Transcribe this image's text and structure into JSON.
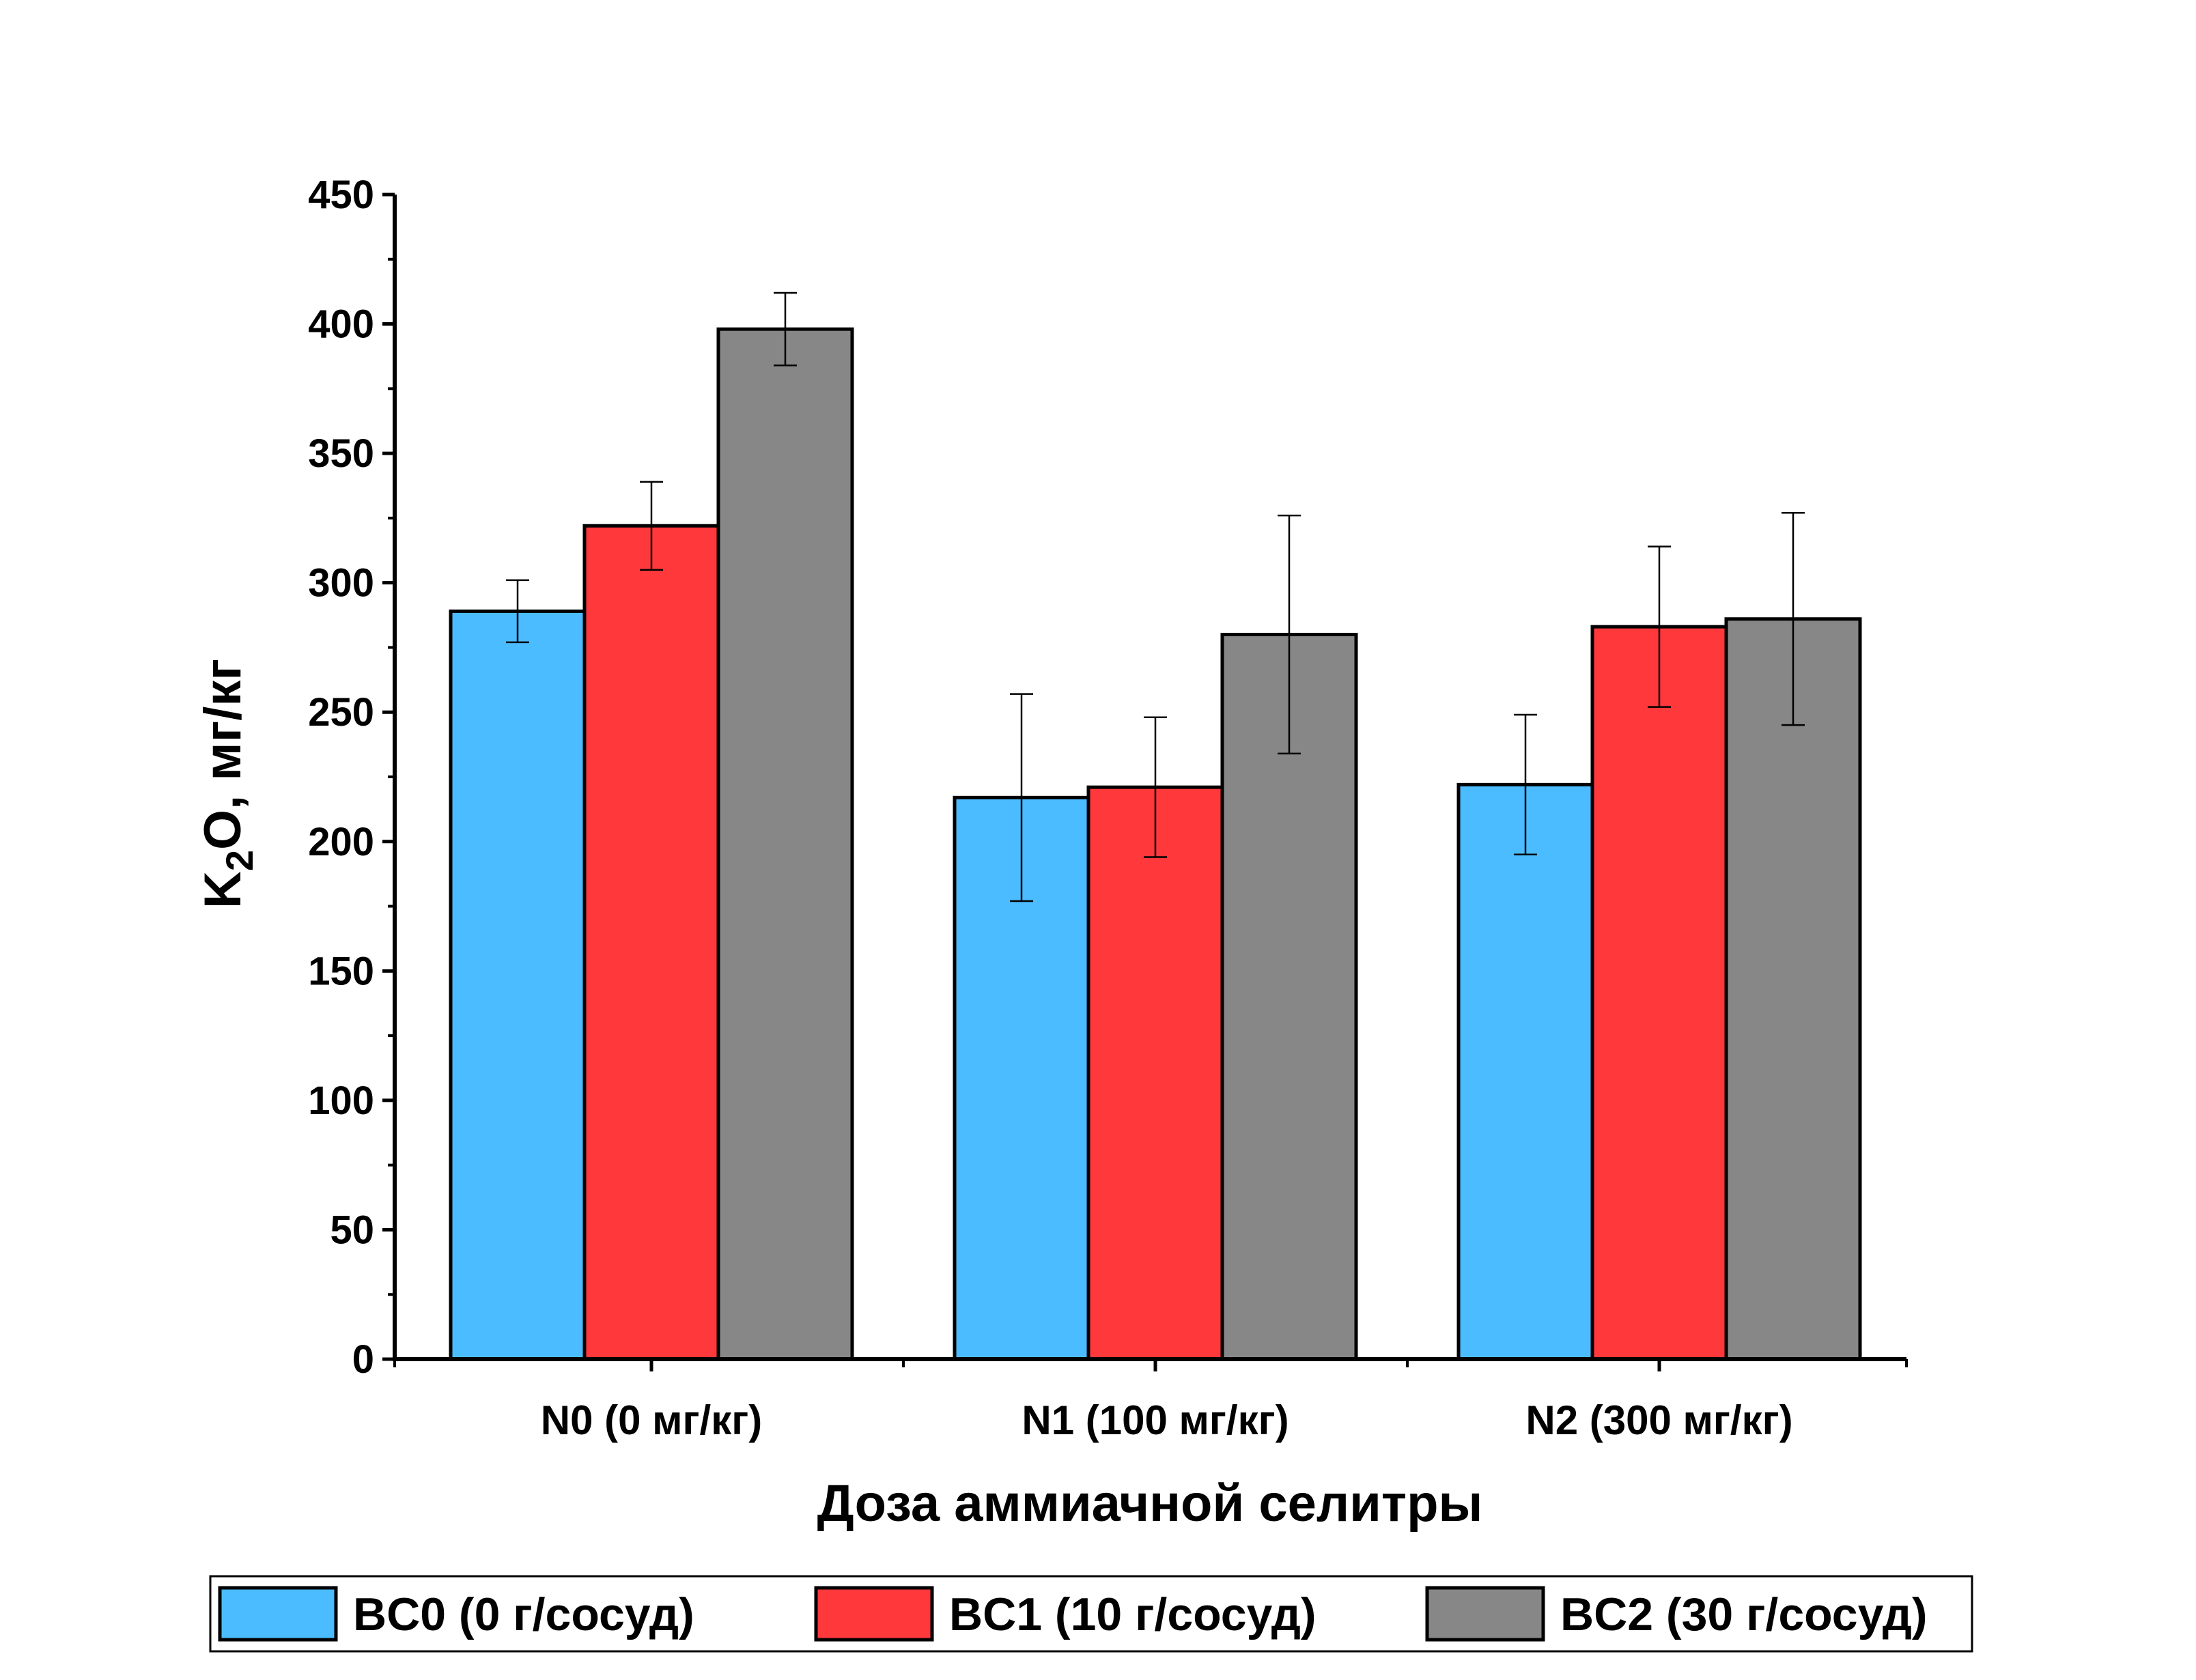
{
  "chart_data": {
    "type": "bar",
    "title": "",
    "xlabel": "Доза аммиачной селитры",
    "ylabel": {
      "main": "K",
      "sub": "2",
      "rest": "O, мг/кг"
    },
    "ylim": [
      0,
      450
    ],
    "yticks": [
      "0",
      "50",
      "100",
      "150",
      "200",
      "250",
      "300",
      "350",
      "400",
      "450"
    ],
    "ytick_values": [
      0,
      50,
      100,
      150,
      200,
      250,
      300,
      350,
      400,
      450
    ],
    "categories": [
      "N0 (0 мг/кг)",
      "N1 (100 мг/кг)",
      "N2 (300 мг/кг)"
    ],
    "series": [
      {
        "name": "BC0 (0 г/сосуд)",
        "color": "#4BBCFF",
        "values": [
          289,
          217,
          222
        ],
        "errors": [
          12,
          40,
          27
        ]
      },
      {
        "name": "BC1 (10 г/сосуд)",
        "color": "#FF383C",
        "values": [
          322,
          221,
          283
        ],
        "errors": [
          17,
          27,
          31
        ]
      },
      {
        "name": "BC2 (30 г/сосуд)",
        "color": "#878787",
        "values": [
          398,
          280,
          286
        ],
        "errors": [
          14,
          46,
          41
        ]
      }
    ],
    "grid": false,
    "legend_position": "bottom"
  }
}
